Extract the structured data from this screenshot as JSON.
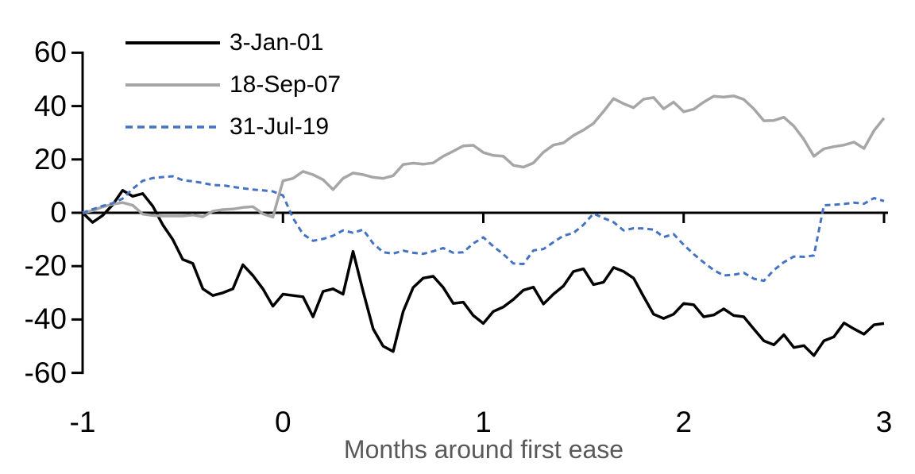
{
  "chart_data": {
    "type": "line",
    "title": "",
    "xlabel": "Months around first ease",
    "ylabel": "",
    "grid": false,
    "legend_position": "top-left",
    "x_axis": {
      "min": -1,
      "max": 3,
      "ticks": [
        -1,
        0,
        1,
        2,
        3
      ]
    },
    "y_axis": {
      "min": -60,
      "max": 60,
      "ticks": [
        60,
        40,
        20,
        0,
        -20,
        -40,
        -60
      ]
    },
    "x_start": -1,
    "x_step": 0.05,
    "series": [
      {
        "name": "3-Jan-01",
        "color": "#000000",
        "style": "solid",
        "values": [
          0,
          -3.6,
          -1.0,
          3.0,
          8.4,
          6.2,
          7.2,
          2.5,
          -4.5,
          -10.0,
          -17.5,
          -19.0,
          -28.5,
          -31.0,
          -30.0,
          -28.5,
          -19.5,
          -23.5,
          -28.5,
          -35.0,
          -30.5,
          -31.0,
          -31.5,
          -39.0,
          -29.5,
          -28.5,
          -30.5,
          -14.5,
          -29.5,
          -43.5,
          -50.0,
          -52.0,
          -37.0,
          -28.0,
          -24.5,
          -23.8,
          -28.0,
          -34.0,
          -33.5,
          -38.5,
          -41.5,
          -37.0,
          -35.3,
          -32.5,
          -29.0,
          -27.9,
          -34.2,
          -30.5,
          -27.4,
          -22.0,
          -21.0,
          -26.9,
          -26.0,
          -20.5,
          -22.0,
          -24.5,
          -31.4,
          -38.0,
          -39.6,
          -38.0,
          -34.0,
          -34.5,
          -39.0,
          -38.3,
          -36.0,
          -38.5,
          -39.0,
          -43.5,
          -48.0,
          -49.5,
          -45.7,
          -50.5,
          -49.8,
          -53.5,
          -48.0,
          -46.5,
          -41.3,
          -43.5,
          -45.5,
          -42.0,
          -41.5
        ]
      },
      {
        "name": "18-Sep-07",
        "color": "#a6a6a6",
        "style": "solid",
        "values": [
          0,
          0.8,
          2.2,
          3.2,
          3.8,
          2.8,
          -0.5,
          -1.0,
          -1.2,
          -1.2,
          -1.2,
          -0.8,
          -1.5,
          0.6,
          1.2,
          1.4,
          2.0,
          2.3,
          -0.4,
          -1.6,
          12.0,
          12.9,
          15.5,
          14.3,
          12.4,
          8.7,
          12.9,
          14.9,
          14.3,
          13.3,
          12.9,
          13.9,
          18.1,
          18.6,
          18.2,
          18.7,
          21.2,
          23.1,
          25.1,
          25.3,
          22.6,
          21.5,
          21.2,
          17.8,
          17.1,
          18.7,
          22.7,
          25.4,
          26.2,
          29.0,
          31.0,
          33.5,
          38.0,
          42.8,
          40.9,
          39.4,
          42.6,
          43.2,
          39.0,
          41.5,
          37.9,
          38.8,
          41.5,
          43.7,
          43.4,
          43.8,
          42.5,
          39.0,
          34.5,
          34.6,
          35.8,
          32.5,
          27.5,
          21.2,
          24.0,
          24.8,
          25.4,
          26.5,
          24.1,
          30.8,
          35.5
        ]
      },
      {
        "name": "31-Jul-19",
        "color": "#4472c4",
        "style": "dashed",
        "values": [
          0,
          1.3,
          2.6,
          3.6,
          5.3,
          9.0,
          12.0,
          13.0,
          13.4,
          13.7,
          12.2,
          11.8,
          11.2,
          10.4,
          10.3,
          9.7,
          9.2,
          8.7,
          8.4,
          8.0,
          6.5,
          -2.0,
          -8.0,
          -10.5,
          -9.8,
          -8.6,
          -6.6,
          -7.5,
          -6.3,
          -11.5,
          -14.8,
          -15.3,
          -14.2,
          -15.0,
          -15.4,
          -14.4,
          -13.2,
          -15.0,
          -14.8,
          -11.5,
          -9.2,
          -12.6,
          -15.5,
          -19.0,
          -19.2,
          -14.1,
          -13.6,
          -11.0,
          -8.6,
          -7.6,
          -4.5,
          -0.3,
          -2.0,
          -3.5,
          -6.6,
          -5.8,
          -5.9,
          -6.3,
          -9.1,
          -8.0,
          -12.0,
          -15.5,
          -18.6,
          -21.5,
          -23.5,
          -23.2,
          -22.5,
          -24.7,
          -25.5,
          -21.5,
          -18.5,
          -16.4,
          -16.5,
          -16.0,
          2.8,
          3.0,
          3.3,
          3.8,
          3.4,
          5.5,
          4.4
        ]
      }
    ]
  },
  "colors": {
    "axis": "#000000",
    "axis_title_text": "#595959",
    "background": "#ffffff",
    "series_black": "#000000",
    "series_gray": "#a6a6a6",
    "series_blue": "#4472c4"
  }
}
